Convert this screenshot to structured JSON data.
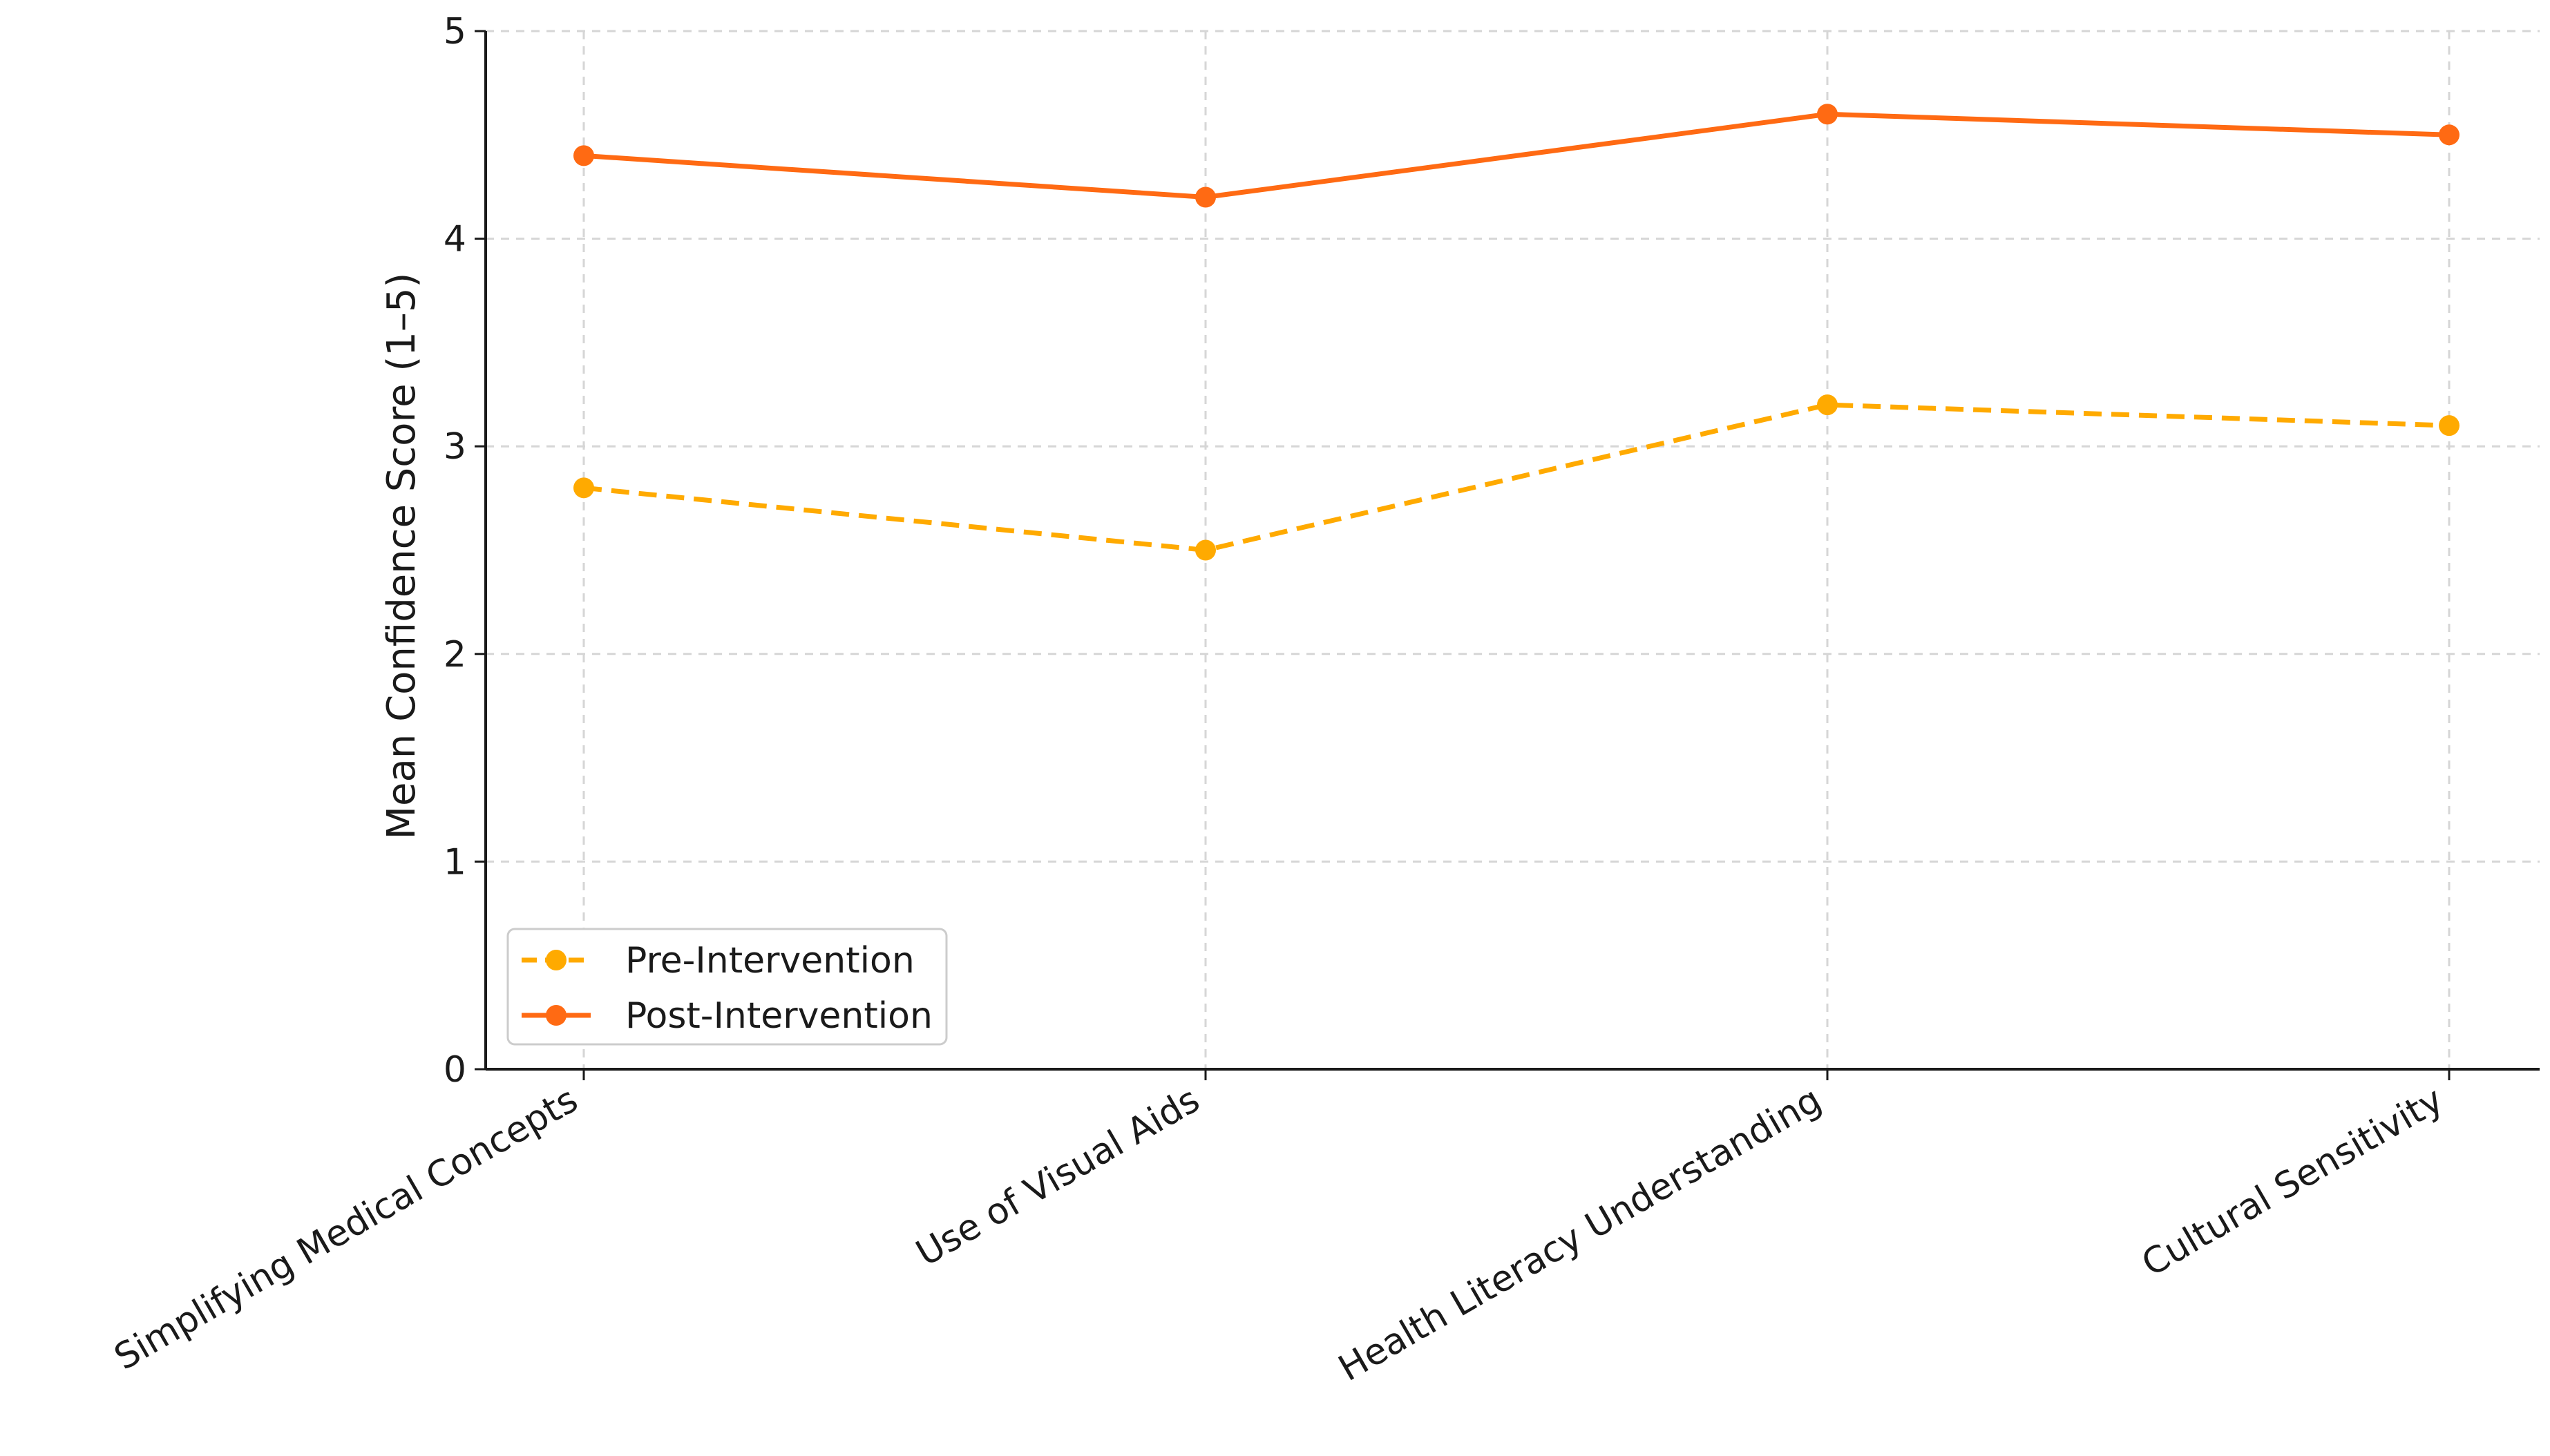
{
  "chart_data": {
    "type": "line",
    "title": "",
    "xlabel": "",
    "ylabel": "Mean Confidence Score (1–5)",
    "categories": [
      "Simplifying Medical Concepts",
      "Use of Visual Aids",
      "Health Literacy Understanding",
      "Cultural Sensitivity"
    ],
    "ylim": [
      0,
      5
    ],
    "yticks": [
      "0",
      "1",
      "2",
      "3",
      "4",
      "5"
    ],
    "grid": true,
    "legend_position": "lower-left",
    "series": [
      {
        "name": "Pre-Intervention",
        "values": [
          2.8,
          2.5,
          3.2,
          3.1
        ],
        "color": "#ffaa00",
        "line_style": "dashed",
        "marker": "circle"
      },
      {
        "name": "Post-Intervention",
        "values": [
          4.4,
          4.2,
          4.6,
          4.5
        ],
        "color": "#ff6a13",
        "line_style": "solid",
        "marker": "circle"
      }
    ]
  }
}
